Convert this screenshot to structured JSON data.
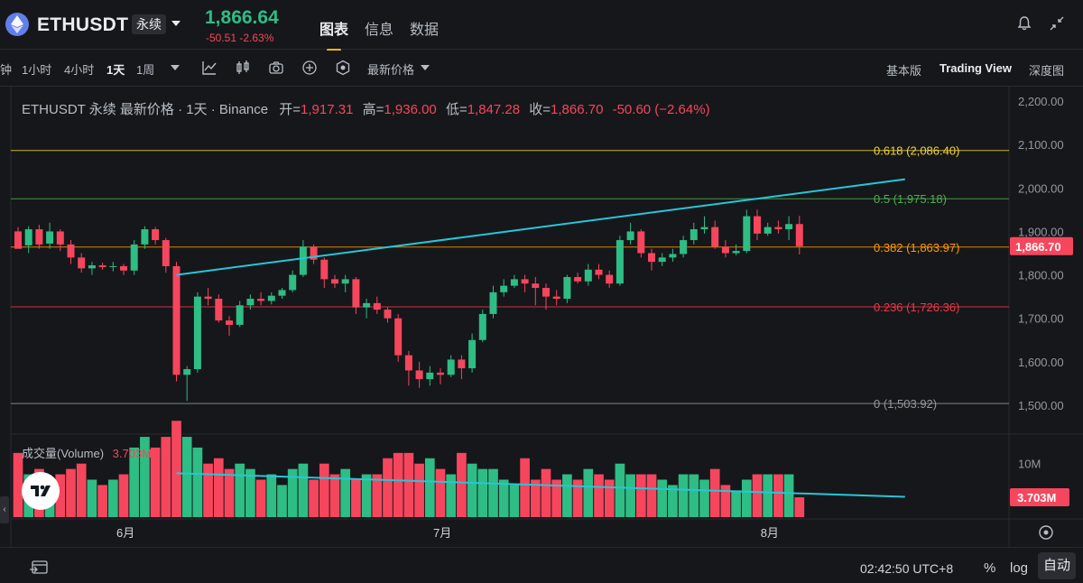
{
  "header": {
    "symbol": "ETHUSDT",
    "perp_badge": "永续",
    "last_price": "1,866.64",
    "change": "-50.51  -2.63%",
    "tabs": [
      {
        "label": "图表",
        "active": true
      },
      {
        "label": "信息",
        "active": false
      },
      {
        "label": "数据",
        "active": false
      }
    ],
    "icons": [
      "bell-icon",
      "collapse-icon"
    ]
  },
  "toolbar": {
    "intervals": [
      {
        "label": "钟",
        "active": false
      },
      {
        "label": "1小时",
        "active": false
      },
      {
        "label": "4小时",
        "active": false
      },
      {
        "label": "1天",
        "active": true
      },
      {
        "label": "1周",
        "active": false
      }
    ],
    "price_type": "最新价格",
    "views": [
      {
        "label": "基本版",
        "active": false
      },
      {
        "label": "Trading View",
        "active": true
      },
      {
        "label": "深度图",
        "active": false
      }
    ]
  },
  "legend": {
    "title": "ETHUSDT 永续 最新价格 · 1天 · Binance",
    "open_label": "开=",
    "open": "1,917.31",
    "high_label": "高=",
    "high": "1,936.00",
    "low_label": "低=",
    "low": "1,847.28",
    "close_label": "收=",
    "close": "1,866.70",
    "change": "-50.60 (−2.64%)"
  },
  "volume_legend": {
    "label": "成交量(Volume)",
    "value": "3.703M"
  },
  "footer": {
    "time": "02:42:50 UTC+8",
    "pct": "%",
    "log": "log",
    "auto": "自动"
  },
  "colors": {
    "up": "#2ebd85",
    "down": "#f6465d",
    "trend": "#26c6da",
    "fib_618": "#f0d236",
    "fib_5": "#4caf50",
    "fib_382": "#ff9800",
    "fib_236": "#f23645",
    "fib_0": "#9598a1"
  },
  "chart_data": {
    "type": "candlestick",
    "y_axis": {
      "ticks": [
        "2,200.00",
        "2,100.00",
        "2,000.00",
        "1,900.00",
        "1,800.00",
        "1,700.00",
        "1,600.00",
        "1,500.00"
      ],
      "range": [
        1485,
        2225
      ]
    },
    "volume_axis": {
      "ticks": [
        "10M"
      ],
      "range": [
        0,
        14
      ],
      "last_label": "3.703M"
    },
    "x_labels": [
      {
        "label": "6月",
        "index": 10
      },
      {
        "label": "7月",
        "index": 40
      },
      {
        "label": "8月",
        "index": 71
      }
    ],
    "current_price_label": "1,866.70",
    "fib_levels": [
      {
        "ratio": "0.618",
        "price": 2086.4,
        "label": "0.618 (2,086.40)",
        "color": "#f0d236"
      },
      {
        "ratio": "0.5",
        "price": 1975.18,
        "label": "0.5 (1,975.18)",
        "color": "#4caf50"
      },
      {
        "ratio": "0.382",
        "price": 1863.97,
        "label": "0.382 (1,863.97)",
        "color": "#ff9800"
      },
      {
        "ratio": "0.236",
        "price": 1726.36,
        "label": "0.236 (1,726.36)",
        "color": "#f23645"
      },
      {
        "ratio": "0",
        "price": 1503.92,
        "label": "0 (1,503.92)",
        "color": "#9598a1"
      }
    ],
    "candles": [
      [
        1900,
        1860,
        1910,
        1865,
        12
      ],
      [
        1868,
        1905,
        1912,
        1850,
        8
      ],
      [
        1905,
        1870,
        1915,
        1860,
        9
      ],
      [
        1872,
        1900,
        1920,
        1860,
        7
      ],
      [
        1900,
        1870,
        1905,
        1855,
        8
      ],
      [
        1870,
        1840,
        1880,
        1825,
        9
      ],
      [
        1840,
        1815,
        1850,
        1805,
        10
      ],
      [
        1815,
        1822,
        1830,
        1800,
        7
      ],
      [
        1822,
        1818,
        1828,
        1812,
        6
      ],
      [
        1818,
        1820,
        1830,
        1808,
        7
      ],
      [
        1820,
        1810,
        1825,
        1800,
        8
      ],
      [
        1810,
        1870,
        1880,
        1800,
        13
      ],
      [
        1870,
        1905,
        1912,
        1860,
        15
      ],
      [
        1905,
        1880,
        1910,
        1870,
        13
      ],
      [
        1880,
        1820,
        1885,
        1805,
        15
      ],
      [
        1820,
        1570,
        1830,
        1555,
        18
      ],
      [
        1570,
        1583,
        1590,
        1510,
        15
      ],
      [
        1583,
        1750,
        1760,
        1575,
        13
      ],
      [
        1750,
        1745,
        1770,
        1730,
        10
      ],
      [
        1745,
        1695,
        1755,
        1690,
        11
      ],
      [
        1695,
        1685,
        1705,
        1660,
        9
      ],
      [
        1685,
        1730,
        1740,
        1680,
        10
      ],
      [
        1730,
        1745,
        1755,
        1720,
        9
      ],
      [
        1745,
        1740,
        1760,
        1730,
        7
      ],
      [
        1740,
        1752,
        1760,
        1732,
        8
      ],
      [
        1752,
        1765,
        1770,
        1745,
        6
      ],
      [
        1765,
        1800,
        1810,
        1760,
        9
      ],
      [
        1800,
        1865,
        1880,
        1795,
        10
      ],
      [
        1865,
        1835,
        1870,
        1825,
        7
      ],
      [
        1835,
        1790,
        1840,
        1770,
        10
      ],
      [
        1790,
        1780,
        1800,
        1770,
        8
      ],
      [
        1780,
        1790,
        1800,
        1760,
        9
      ],
      [
        1790,
        1725,
        1795,
        1710,
        7
      ],
      [
        1725,
        1735,
        1745,
        1700,
        8
      ],
      [
        1735,
        1720,
        1750,
        1710,
        8
      ],
      [
        1720,
        1700,
        1725,
        1690,
        11
      ],
      [
        1700,
        1615,
        1710,
        1600,
        12
      ],
      [
        1615,
        1580,
        1625,
        1545,
        12
      ],
      [
        1580,
        1560,
        1600,
        1540,
        10
      ],
      [
        1560,
        1575,
        1590,
        1545,
        11
      ],
      [
        1575,
        1570,
        1585,
        1548,
        9
      ],
      [
        1570,
        1605,
        1615,
        1565,
        8
      ],
      [
        1605,
        1585,
        1615,
        1560,
        12
      ],
      [
        1585,
        1650,
        1665,
        1575,
        10
      ],
      [
        1650,
        1710,
        1720,
        1645,
        9
      ],
      [
        1710,
        1760,
        1775,
        1700,
        9
      ],
      [
        1760,
        1775,
        1790,
        1750,
        7
      ],
      [
        1775,
        1790,
        1800,
        1770,
        6
      ],
      [
        1790,
        1780,
        1800,
        1760,
        11
      ],
      [
        1780,
        1770,
        1795,
        1730,
        7
      ],
      [
        1770,
        1750,
        1780,
        1720,
        9
      ],
      [
        1750,
        1745,
        1765,
        1730,
        7
      ],
      [
        1745,
        1795,
        1800,
        1735,
        8
      ],
      [
        1795,
        1785,
        1805,
        1780,
        7
      ],
      [
        1785,
        1812,
        1825,
        1775,
        9
      ],
      [
        1812,
        1800,
        1825,
        1790,
        8
      ],
      [
        1800,
        1780,
        1810,
        1770,
        7
      ],
      [
        1780,
        1880,
        1890,
        1775,
        10
      ],
      [
        1880,
        1900,
        1920,
        1870,
        8
      ],
      [
        1900,
        1850,
        1905,
        1840,
        8
      ],
      [
        1850,
        1830,
        1860,
        1810,
        8
      ],
      [
        1830,
        1840,
        1850,
        1820,
        7
      ],
      [
        1840,
        1848,
        1860,
        1830,
        6
      ],
      [
        1848,
        1880,
        1890,
        1840,
        8
      ],
      [
        1880,
        1905,
        1920,
        1870,
        8
      ],
      [
        1905,
        1910,
        1935,
        1895,
        7
      ],
      [
        1910,
        1865,
        1925,
        1860,
        9
      ],
      [
        1865,
        1850,
        1880,
        1840,
        6
      ],
      [
        1850,
        1855,
        1870,
        1845,
        5
      ],
      [
        1855,
        1935,
        1950,
        1850,
        7
      ],
      [
        1935,
        1895,
        1950,
        1880,
        8
      ],
      [
        1895,
        1910,
        1920,
        1890,
        8
      ],
      [
        1910,
        1905,
        1925,
        1895,
        8
      ],
      [
        1905,
        1917,
        1935,
        1880,
        8
      ],
      [
        1917,
        1866,
        1936,
        1847,
        3.703
      ]
    ],
    "trendlines": [
      {
        "from": [
          15,
          1800
        ],
        "to": [
          84,
          2020
        ],
        "panel": "price"
      },
      {
        "from": [
          15,
          8.2
        ],
        "to": [
          84,
          3.8
        ],
        "panel": "volume"
      }
    ]
  }
}
